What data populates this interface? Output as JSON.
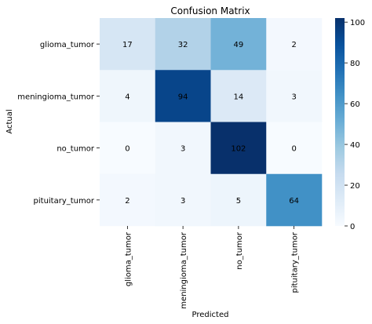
{
  "chart_data": {
    "type": "heatmap",
    "title": "Confusion Matrix",
    "xlabel": "Predicted",
    "ylabel": "Actual",
    "x_categories": [
      "glioma_tumor",
      "meningioma_tumor",
      "no_tumor",
      "pituitary_tumor"
    ],
    "y_categories": [
      "glioma_tumor",
      "meningioma_tumor",
      "no_tumor",
      "pituitary_tumor"
    ],
    "values": [
      [
        17,
        32,
        49,
        2
      ],
      [
        4,
        94,
        14,
        3
      ],
      [
        0,
        3,
        102,
        0
      ],
      [
        2,
        3,
        5,
        64
      ]
    ],
    "colorbar": {
      "min": 0,
      "max": 102,
      "ticks": [
        0,
        20,
        40,
        60,
        80,
        100
      ],
      "colormap": "Blues"
    },
    "annotated": true
  }
}
